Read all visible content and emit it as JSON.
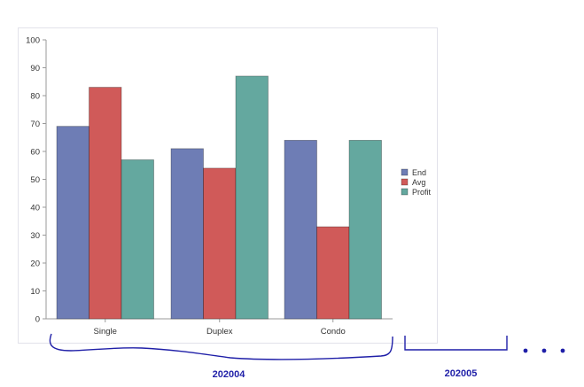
{
  "chart_data": {
    "type": "bar",
    "title": "",
    "xlabel": "",
    "ylabel": "",
    "ylim": [
      0,
      100
    ],
    "yticks": [
      0,
      10,
      20,
      30,
      40,
      50,
      60,
      70,
      80,
      90,
      100
    ],
    "grid": false,
    "legend_position": "right",
    "categories": [
      "Single",
      "Duplex",
      "Condo"
    ],
    "series": [
      {
        "name": "End",
        "color": "#6e7db5",
        "values": [
          69,
          61,
          64
        ]
      },
      {
        "name": "Avg",
        "color": "#d05a59",
        "values": [
          83,
          54,
          33
        ]
      },
      {
        "name": "Profit",
        "color": "#64a89f",
        "values": [
          57,
          87,
          64
        ]
      }
    ],
    "annotations": [
      {
        "text": "202004",
        "type": "brace",
        "spans": [
          "Single",
          "Duplex",
          "Condo"
        ]
      },
      {
        "text": "202005",
        "type": "bracket"
      },
      {
        "text": "• • •",
        "type": "continuation"
      }
    ]
  },
  "annotations": {
    "group1_label": "202004",
    "group2_label": "202005",
    "ellipsis": "• • •",
    "color": "#1f1fa8"
  }
}
